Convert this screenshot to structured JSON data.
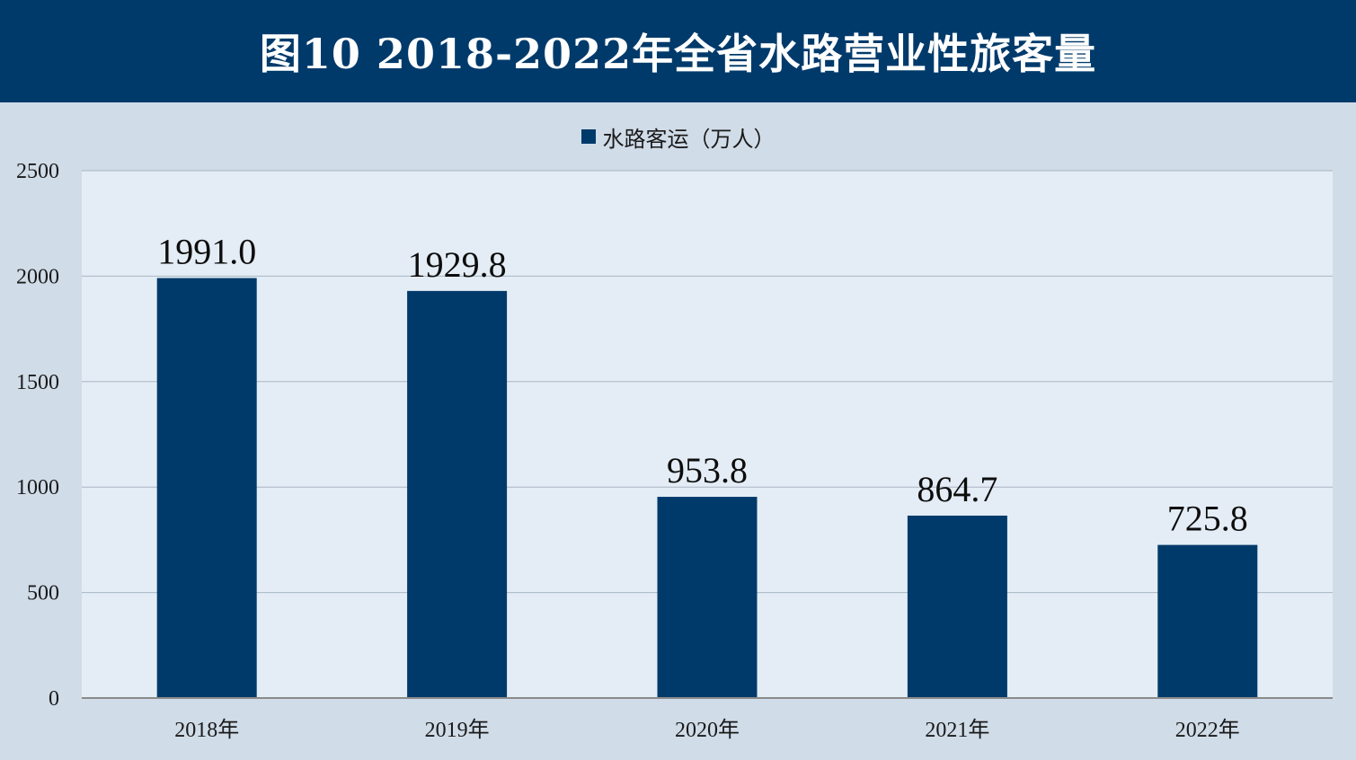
{
  "title": "图10  2018-2022年全省水路营业性旅客量",
  "legend": {
    "label": "水路客运（万人）"
  },
  "colors": {
    "bar": "#003a6b",
    "plot_bg": "#e4edf5",
    "frame_bg": "#d0dce8",
    "title_bg": "#003a6b"
  },
  "chart_data": {
    "type": "bar",
    "title": "图10  2018-2022年全省水路营业性旅客量",
    "categories": [
      "2018年",
      "2019年",
      "2020年",
      "2021年",
      "2022年"
    ],
    "series": [
      {
        "name": "水路客运（万人）",
        "values": [
          1991.0,
          1929.8,
          953.8,
          864.7,
          725.8
        ]
      }
    ],
    "data_labels": [
      "1991.0",
      "1929.8",
      "953.8",
      "864.7",
      "725.8"
    ],
    "ylim": [
      0,
      2500
    ],
    "yticks": [
      0,
      500,
      1000,
      1500,
      2000,
      2500
    ],
    "grid": true,
    "legend_position": "top-center"
  }
}
